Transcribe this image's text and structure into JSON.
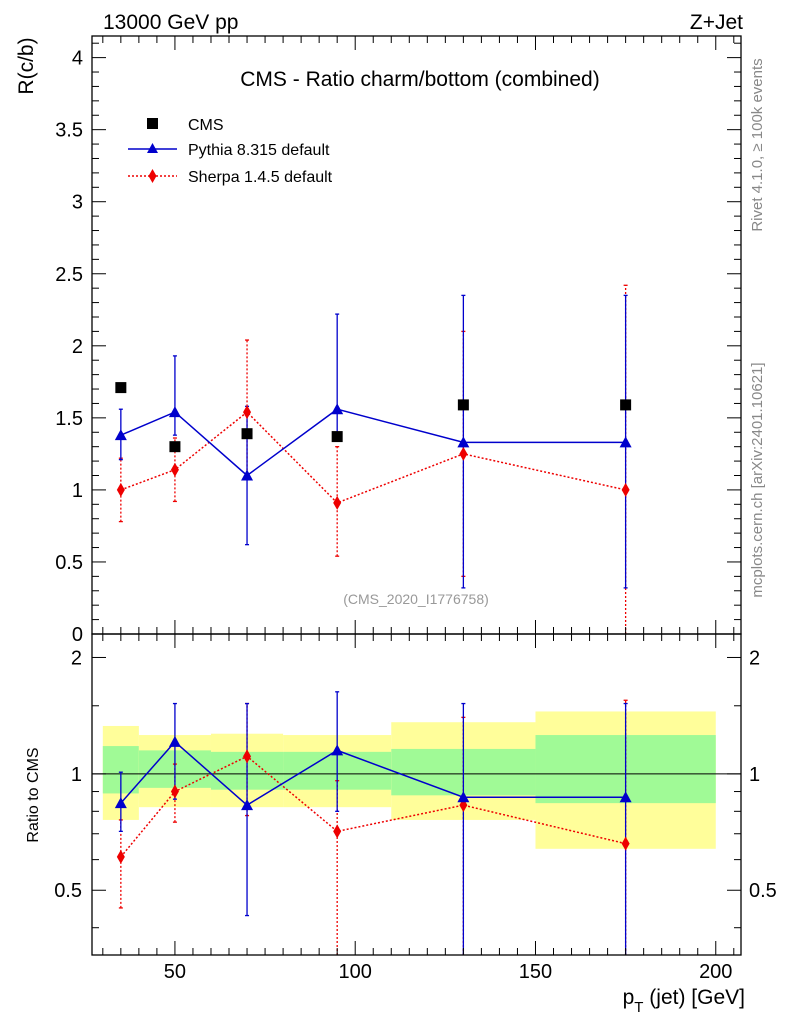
{
  "header": {
    "energy_label": "13000 GeV pp",
    "process_label": "Z+Jet"
  },
  "side_labels": {
    "rivet": "Rivet 4.1.0, ≥ 100k events",
    "mcplots": "mcplots.cern.ch [arXiv:2401.10621]"
  },
  "chart_data": {
    "type": "scatter",
    "title": "CMS - Ratio charm/bottom (combined)",
    "analysis_id": "(CMS_2020_I1776758)",
    "xlabel_main": "p",
    "xlabel_sub": "T",
    "xlabel_rest": " (jet) [GeV]",
    "ylabel": "R(c/b)",
    "ratio_ylabel": "Ratio to CMS",
    "xlim": [
      27,
      207
    ],
    "ylim": [
      0,
      4.15
    ],
    "ratio_ylim": [
      0.34,
      2.3
    ],
    "x_ticks": [
      50,
      100,
      150,
      200
    ],
    "y_ticks": [
      "0",
      "0.5",
      "1",
      "1.5",
      "2",
      "2.5",
      "3",
      "3.5",
      "4"
    ],
    "ratio_ticks": [
      0.5,
      1,
      2
    ],
    "colors": {
      "data": "#000000",
      "pythia": "#0000cc",
      "sherpa": "#ee0000",
      "band_inner": "#a0fa96",
      "band_outer": "#fffe9a"
    },
    "bins": [
      {
        "lo": 30,
        "hi": 40,
        "x": 35
      },
      {
        "lo": 40,
        "hi": 60,
        "x": 50
      },
      {
        "lo": 60,
        "hi": 80,
        "x": 70
      },
      {
        "lo": 80,
        "hi": 110,
        "x": 95
      },
      {
        "lo": 110,
        "hi": 150,
        "x": 130
      },
      {
        "lo": 150,
        "hi": 200,
        "x": 175
      }
    ],
    "series": [
      {
        "name": "CMS",
        "legend": "CMS",
        "values": [
          1.71,
          1.3,
          1.39,
          1.37,
          1.59,
          1.59
        ],
        "band_stat": [
          [
            0.89,
            1.18
          ],
          [
            0.92,
            1.15
          ],
          [
            0.91,
            1.14
          ],
          [
            0.91,
            1.14
          ],
          [
            0.88,
            1.16
          ],
          [
            0.84,
            1.26
          ]
        ],
        "band_total": [
          [
            0.76,
            1.33
          ],
          [
            0.82,
            1.26
          ],
          [
            0.82,
            1.27
          ],
          [
            0.82,
            1.26
          ],
          [
            0.76,
            1.36
          ],
          [
            0.64,
            1.45
          ]
        ]
      },
      {
        "name": "Pythia 8.315 default",
        "legend": "Pythia 8.315 default",
        "values": [
          1.38,
          1.54,
          1.1,
          1.56,
          1.33,
          1.33
        ],
        "err_lo": [
          1.21,
          1.38,
          0.62,
          1.35,
          0.32,
          0.32
        ],
        "err_hi": [
          1.56,
          1.93,
          1.58,
          2.22,
          2.35,
          2.35
        ],
        "ratio": [
          0.84,
          1.21,
          0.83,
          1.15,
          0.87,
          0.87
        ],
        "ratio_lo": [
          0.71,
          0.86,
          0.43,
          0.8,
          0.2,
          0.2
        ],
        "ratio_hi": [
          1.01,
          1.52,
          1.52,
          1.63,
          1.52,
          1.52
        ]
      },
      {
        "name": "Sherpa 1.4.5 default",
        "legend": "Sherpa 1.4.5 default",
        "values": [
          1.0,
          1.14,
          1.54,
          0.91,
          1.25,
          1.0
        ],
        "err_lo": [
          0.78,
          0.92,
          1.08,
          0.54,
          0.4,
          0.0
        ],
        "err_hi": [
          1.22,
          1.36,
          2.04,
          1.3,
          2.1,
          2.42
        ],
        "ratio": [
          0.61,
          0.9,
          1.11,
          0.71,
          0.83,
          0.66
        ],
        "ratio_lo": [
          0.45,
          0.75,
          0.78,
          0.3,
          0.2,
          0.2
        ],
        "ratio_hi": [
          0.76,
          1.06,
          1.52,
          0.96,
          1.4,
          1.55
        ]
      }
    ]
  }
}
